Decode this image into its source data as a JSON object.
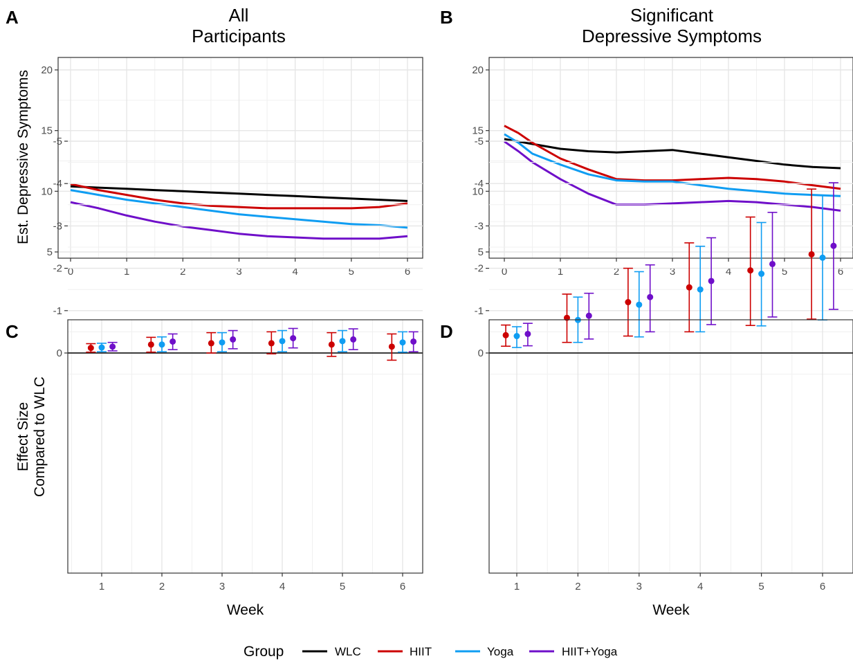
{
  "figure": {
    "legend": {
      "title": "Group",
      "position": "bottom",
      "items": [
        {
          "label": "WLC",
          "color": "#000000"
        },
        {
          "label": "HIIT",
          "color": "#CC0000"
        },
        {
          "label": "Yoga",
          "color": "#0F9DF2"
        },
        {
          "label": "HIIT+Yoga",
          "color": "#6F0FC9"
        }
      ]
    },
    "panels": [
      {
        "letter": "A",
        "title": [
          "All",
          "Participants"
        ],
        "ylabel": [
          "Est. Depressive Symptoms"
        ],
        "xlabel": ""
      },
      {
        "letter": "B",
        "title": [
          "Significant",
          "Depressive Symptoms"
        ],
        "ylabel": [],
        "xlabel": ""
      },
      {
        "letter": "C",
        "title": [],
        "ylabel": [
          "Effect Size",
          "Compared to WLC"
        ],
        "xlabel": "Week"
      },
      {
        "letter": "D",
        "title": [],
        "ylabel": [],
        "xlabel": "Week"
      }
    ]
  },
  "chart_data": [
    {
      "panel": "A",
      "type": "line",
      "title": "All Participants",
      "ylabel": "Est. Depressive Symptoms",
      "xlim": [
        0,
        6
      ],
      "ylim": [
        5,
        20
      ],
      "xticks": [
        0,
        1,
        2,
        3,
        4,
        5,
        6
      ],
      "yticks": [
        5,
        10,
        15,
        20
      ],
      "grid": true,
      "series": [
        {
          "name": "WLC",
          "color": "#000000",
          "x": [
            0,
            0.5,
            1,
            1.5,
            2,
            2.5,
            3,
            3.5,
            4,
            4.5,
            5,
            5.5,
            6
          ],
          "y": [
            10.4,
            10.3,
            10.2,
            10.1,
            10.0,
            9.9,
            9.8,
            9.7,
            9.6,
            9.5,
            9.4,
            9.3,
            9.2
          ]
        },
        {
          "name": "HIIT",
          "color": "#CC0000",
          "x": [
            0,
            0.5,
            1,
            1.5,
            2,
            2.5,
            3,
            3.5,
            4,
            4.5,
            5,
            5.5,
            6
          ],
          "y": [
            10.6,
            10.1,
            9.7,
            9.3,
            9.0,
            8.8,
            8.7,
            8.6,
            8.6,
            8.6,
            8.6,
            8.7,
            9.0
          ]
        },
        {
          "name": "Yoga",
          "color": "#0F9DF2",
          "x": [
            0,
            0.5,
            1,
            1.5,
            2,
            2.5,
            3,
            3.5,
            4,
            4.5,
            5,
            5.5,
            6
          ],
          "y": [
            10.1,
            9.7,
            9.3,
            9.0,
            8.7,
            8.4,
            8.1,
            7.9,
            7.7,
            7.5,
            7.3,
            7.2,
            7.0
          ]
        },
        {
          "name": "HIIT+Yoga",
          "color": "#6F0FC9",
          "x": [
            0,
            0.5,
            1,
            1.5,
            2,
            2.5,
            3,
            3.5,
            4,
            4.5,
            5,
            5.5,
            6
          ],
          "y": [
            9.1,
            8.6,
            8.0,
            7.5,
            7.1,
            6.8,
            6.5,
            6.3,
            6.2,
            6.1,
            6.1,
            6.1,
            6.3
          ]
        }
      ]
    },
    {
      "panel": "B",
      "type": "line",
      "title": "Significant Depressive Symptoms",
      "ylabel": "",
      "xlim": [
        0,
        6
      ],
      "ylim": [
        5,
        20
      ],
      "xticks": [
        0,
        1,
        2,
        3,
        4,
        5,
        6
      ],
      "yticks": [
        5,
        10,
        15,
        20
      ],
      "grid": true,
      "series": [
        {
          "name": "WLC",
          "color": "#000000",
          "x": [
            0,
            0.5,
            1,
            1.5,
            2,
            2.5,
            3,
            3.5,
            4,
            4.5,
            5,
            5.5,
            6
          ],
          "y": [
            14.3,
            13.9,
            13.5,
            13.3,
            13.2,
            13.3,
            13.4,
            13.1,
            12.8,
            12.5,
            12.2,
            12.0,
            11.9
          ]
        },
        {
          "name": "HIIT",
          "color": "#CC0000",
          "x": [
            0,
            0.25,
            0.5,
            1,
            1.5,
            2,
            2.5,
            3,
            3.5,
            4,
            4.5,
            5,
            5.5,
            6
          ],
          "y": [
            15.4,
            14.8,
            14.0,
            12.7,
            11.8,
            11.0,
            10.9,
            10.9,
            11.0,
            11.1,
            11.0,
            10.8,
            10.5,
            10.2
          ]
        },
        {
          "name": "Yoga",
          "color": "#0F9DF2",
          "x": [
            0,
            0.25,
            0.5,
            1,
            1.5,
            2,
            2.5,
            3,
            3.5,
            4,
            4.5,
            5,
            5.5,
            6
          ],
          "y": [
            14.7,
            14.0,
            13.1,
            12.2,
            11.4,
            10.9,
            10.8,
            10.8,
            10.5,
            10.2,
            10.0,
            9.8,
            9.7,
            9.6
          ]
        },
        {
          "name": "HIIT+Yoga",
          "color": "#6F0FC9",
          "x": [
            0,
            0.25,
            0.5,
            1,
            1.5,
            2,
            2.5,
            3,
            3.5,
            4,
            4.5,
            5,
            5.5,
            6
          ],
          "y": [
            14.1,
            13.3,
            12.4,
            11.0,
            9.8,
            8.9,
            8.9,
            9.0,
            9.1,
            9.2,
            9.1,
            8.9,
            8.7,
            8.4
          ]
        }
      ]
    },
    {
      "panel": "C",
      "type": "scatter",
      "subtype": "point-errorbar",
      "xlabel": "Week",
      "ylabel": "Effect Size Compared to WLC",
      "xlim": [
        0.5,
        6.5
      ],
      "ylim": [
        -5.25,
        0.8
      ],
      "xticks": [
        1,
        2,
        3,
        4,
        5,
        6
      ],
      "yticks": [
        0,
        -1,
        -2,
        -3,
        -4,
        -5
      ],
      "hline": 0,
      "grid": true,
      "dodge": 0.18,
      "series": [
        {
          "name": "HIIT",
          "color": "#CC0000",
          "x": [
            1,
            2,
            3,
            4,
            5,
            6
          ],
          "y": [
            -0.12,
            -0.2,
            -0.23,
            -0.23,
            -0.2,
            -0.15
          ],
          "lower": [
            -0.22,
            -0.37,
            -0.48,
            -0.5,
            -0.48,
            -0.45
          ],
          "upper": [
            -0.02,
            -0.02,
            0.0,
            0.02,
            0.08,
            0.17
          ]
        },
        {
          "name": "Yoga",
          "color": "#0F9DF2",
          "x": [
            1,
            2,
            3,
            4,
            5,
            6
          ],
          "y": [
            -0.13,
            -0.2,
            -0.25,
            -0.28,
            -0.28,
            -0.25
          ],
          "lower": [
            -0.23,
            -0.38,
            -0.48,
            -0.53,
            -0.53,
            -0.5
          ],
          "upper": [
            -0.03,
            -0.03,
            -0.03,
            -0.03,
            -0.03,
            -0.02
          ]
        },
        {
          "name": "HIIT+Yoga",
          "color": "#6F0FC9",
          "x": [
            1,
            2,
            3,
            4,
            5,
            6
          ],
          "y": [
            -0.15,
            -0.27,
            -0.32,
            -0.35,
            -0.32,
            -0.27
          ],
          "lower": [
            -0.25,
            -0.45,
            -0.53,
            -0.58,
            -0.57,
            -0.5
          ],
          "upper": [
            -0.05,
            -0.08,
            -0.1,
            -0.12,
            -0.08,
            -0.03
          ]
        }
      ]
    },
    {
      "panel": "D",
      "type": "scatter",
      "subtype": "point-errorbar",
      "xlabel": "Week",
      "ylabel": "",
      "xlim": [
        0.5,
        6.5
      ],
      "ylim": [
        -5.25,
        0.8
      ],
      "xticks": [
        1,
        2,
        3,
        4,
        5,
        6
      ],
      "yticks": [
        0,
        -1,
        -2,
        -3,
        -4,
        -5
      ],
      "hline": 0,
      "grid": true,
      "dodge": 0.18,
      "series": [
        {
          "name": "HIIT",
          "color": "#CC0000",
          "x": [
            1,
            2,
            3,
            4,
            5,
            6
          ],
          "y": [
            -0.42,
            -0.83,
            -1.2,
            -1.55,
            -1.95,
            -2.33
          ],
          "lower": [
            -0.66,
            -1.39,
            -2.0,
            -2.6,
            -3.21,
            -3.87
          ],
          "upper": [
            -0.16,
            -0.25,
            -0.4,
            -0.5,
            -0.65,
            -0.8
          ]
        },
        {
          "name": "Yoga",
          "color": "#0F9DF2",
          "x": [
            1,
            2,
            3,
            4,
            5,
            6
          ],
          "y": [
            -0.4,
            -0.78,
            -1.14,
            -1.5,
            -1.87,
            -2.25
          ],
          "lower": [
            -0.62,
            -1.32,
            -1.92,
            -2.52,
            -3.08,
            -3.72
          ],
          "upper": [
            -0.13,
            -0.25,
            -0.38,
            -0.5,
            -0.64,
            -0.78
          ]
        },
        {
          "name": "HIIT+Yoga",
          "color": "#6F0FC9",
          "x": [
            1,
            2,
            3,
            4,
            5,
            6
          ],
          "y": [
            -0.45,
            -0.88,
            -1.32,
            -1.7,
            -2.1,
            -2.53
          ],
          "lower": [
            -0.7,
            -1.41,
            -2.08,
            -2.72,
            -3.32,
            -4.02
          ],
          "upper": [
            -0.17,
            -0.33,
            -0.5,
            -0.67,
            -0.85,
            -1.03
          ]
        }
      ]
    }
  ]
}
